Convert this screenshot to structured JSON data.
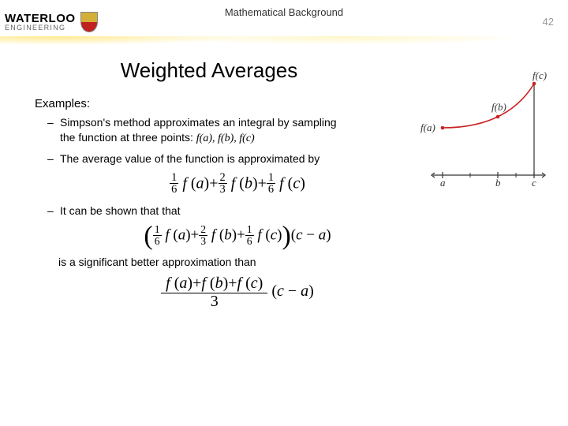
{
  "header": {
    "logo_name": "WATERLOO",
    "logo_sub": "ENGINEERING",
    "breadcrumb": "Mathematical Background",
    "page_number": "42"
  },
  "title": "Weighted Averages",
  "body": {
    "examples_label": "Examples:",
    "bullet1_a": "Simpson's method approximates an integral by sampling",
    "bullet1_b": "the function at three points:  ",
    "fa": "f",
    "a": "a",
    "fb": "f",
    "b": "b",
    "fc": "f",
    "c": "c",
    "bullet2": "The average value of the function is approximated by",
    "bullet3": "It can be shown that that",
    "bullet4": "is a significant better approximation than"
  },
  "formula": {
    "one": "1",
    "two": "2",
    "three": "3",
    "six": "6",
    "f": "f",
    "a": "a",
    "b": "b",
    "c": "c",
    "plus": "+",
    "minus": "−",
    "lp": "(",
    "rp": ")"
  },
  "diagram": {
    "label_fa": "f(a)",
    "label_fb": "f(b)",
    "label_fc": "f(c)",
    "tick_a": "a",
    "tick_b": "b",
    "tick_c": "c",
    "curve_color": "#cc2020",
    "axis_color": "#333333",
    "dot_color": "#cc2020",
    "xlim": [
      0,
      140
    ],
    "ylim": [
      0,
      120
    ],
    "points": {
      "a": {
        "x": 18,
        "y": 62
      },
      "b": {
        "x": 88,
        "y": 48
      },
      "c": {
        "x": 134,
        "y": 6
      }
    },
    "axis_y": 122,
    "tick_half": 4
  }
}
